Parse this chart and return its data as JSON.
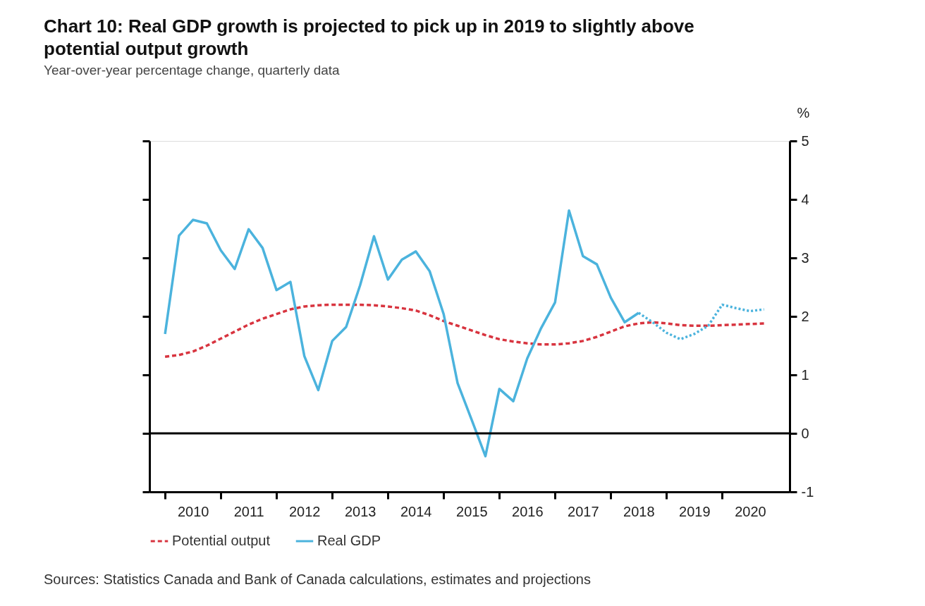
{
  "chart_data": {
    "type": "line",
    "title": "Chart 10: Real GDP growth is projected to pick up in 2019 to slightly above potential output growth",
    "subtitle": "Year-over-year percentage change, quarterly data",
    "ylabel": "%",
    "annotations": [
      "Sources: Statistics Canada and Bank of Canada calculations, estimates and projections"
    ],
    "x": [
      2010,
      2010.25,
      2010.5,
      2010.75,
      2011,
      2011.25,
      2011.5,
      2011.75,
      2012,
      2012.25,
      2012.5,
      2012.75,
      2013,
      2013.25,
      2013.5,
      2013.75,
      2014,
      2014.25,
      2014.5,
      2014.75,
      2015,
      2015.25,
      2015.5,
      2015.75,
      2016,
      2016.25,
      2016.5,
      2016.75,
      2017,
      2017.25,
      2017.5,
      2017.75,
      2018,
      2018.25,
      2018.5,
      2018.75,
      2019,
      2019.25,
      2019.5,
      2019.75,
      2020,
      2020.25,
      2020.5,
      2020.75
    ],
    "series": [
      {
        "name": "Potential output",
        "color": "#d8343f",
        "line_style": "dashed",
        "values": [
          1.31,
          1.34,
          1.4,
          1.5,
          1.62,
          1.74,
          1.86,
          1.96,
          2.04,
          2.12,
          2.17,
          2.19,
          2.2,
          2.2,
          2.2,
          2.19,
          2.17,
          2.14,
          2.1,
          2.02,
          1.92,
          1.84,
          1.76,
          1.68,
          1.61,
          1.57,
          1.54,
          1.52,
          1.52,
          1.54,
          1.58,
          1.65,
          1.74,
          1.83,
          1.88,
          1.9,
          1.88,
          1.85,
          1.84,
          1.84,
          1.85,
          1.86,
          1.87,
          1.88
        ]
      },
      {
        "name": "Real GDP",
        "color": "#4bb3dd",
        "line_style": "solid",
        "values": [
          1.7,
          3.38,
          3.65,
          3.59,
          3.13,
          2.81,
          3.49,
          3.17,
          2.45,
          2.59,
          1.32,
          0.74,
          1.58,
          1.82,
          2.53,
          3.37,
          2.63,
          2.97,
          3.11,
          2.77,
          2.04,
          0.86,
          0.24,
          -0.39,
          0.76,
          0.55,
          1.28,
          1.8,
          2.24,
          3.81,
          3.03,
          2.89,
          2.32,
          1.9,
          2.06,
          null,
          null,
          null,
          null,
          null,
          null,
          null,
          null,
          null
        ]
      },
      {
        "color": "#4bb3dd",
        "line_style": "dotted",
        "values": [
          null,
          null,
          null,
          null,
          null,
          null,
          null,
          null,
          null,
          null,
          null,
          null,
          null,
          null,
          null,
          null,
          null,
          null,
          null,
          null,
          null,
          null,
          null,
          null,
          null,
          null,
          null,
          null,
          null,
          null,
          null,
          null,
          null,
          null,
          2.06,
          1.9,
          1.72,
          1.61,
          1.7,
          1.84,
          2.2,
          2.14,
          2.09,
          2.12
        ]
      }
    ],
    "xlim": [
      2009.72,
      2021.21
    ],
    "xticks": [
      {
        "value": 2010,
        "label": null
      },
      {
        "value": 2010.5,
        "label": "2010"
      },
      {
        "value": 2011,
        "label": null
      },
      {
        "value": 2011.5,
        "label": "2011"
      },
      {
        "value": 2012,
        "label": null
      },
      {
        "value": 2012.5,
        "label": "2012"
      },
      {
        "value": 2013,
        "label": null
      },
      {
        "value": 2013.5,
        "label": "2013"
      },
      {
        "value": 2014,
        "label": null
      },
      {
        "value": 2014.5,
        "label": "2014"
      },
      {
        "value": 2015,
        "label": null
      },
      {
        "value": 2015.5,
        "label": "2015"
      },
      {
        "value": 2016,
        "label": null
      },
      {
        "value": 2016.5,
        "label": "2016"
      },
      {
        "value": 2017,
        "label": null
      },
      {
        "value": 2017.5,
        "label": "2017"
      },
      {
        "value": 2018,
        "label": null
      },
      {
        "value": 2018.5,
        "label": "2018"
      },
      {
        "value": 2019,
        "label": null
      },
      {
        "value": 2019.5,
        "label": "2019"
      },
      {
        "value": 2020,
        "label": null
      },
      {
        "value": 2020.5,
        "label": "2020"
      }
    ],
    "ylim": [
      -1,
      5
    ],
    "yticks": [
      -1,
      0,
      1,
      2,
      3,
      4,
      5
    ],
    "ref_lines": [
      {
        "axis": "y",
        "value": 0,
        "color": "#000000",
        "line_style": "solid"
      }
    ],
    "grid": false,
    "legend": "bottom left",
    "marker": "none"
  }
}
